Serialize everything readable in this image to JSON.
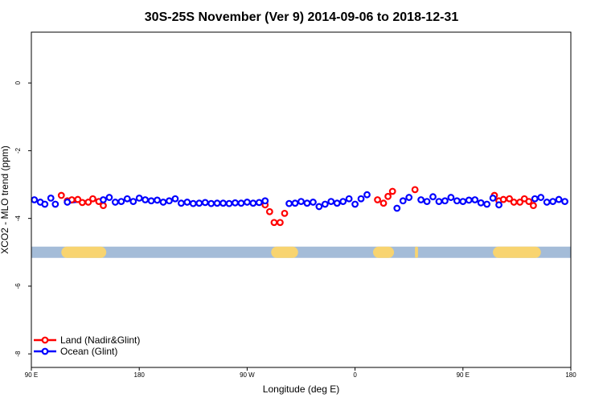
{
  "chart_data": {
    "type": "scatter",
    "title": "30S-25S November (Ver 9)   2014-09-06 to 2018-12-31",
    "xlabel": "Longitude (deg E)",
    "ylabel": "XCO2 - MLO trend (ppm)",
    "xlim": [
      90,
      450
    ],
    "ylim": [
      -8.4,
      1.5
    ],
    "x_ticks": [
      {
        "value": 90,
        "label": "90 E"
      },
      {
        "value": 162,
        "label": "180"
      },
      {
        "value": 234,
        "label": "90 W"
      },
      {
        "value": 306,
        "label": "0"
      },
      {
        "value": 378,
        "label": "90 E"
      },
      {
        "value": 450,
        "label": "180"
      }
    ],
    "y_ticks": [
      {
        "value": 0,
        "label": "0"
      },
      {
        "value": -2,
        "label": "-2"
      },
      {
        "value": -4,
        "label": "-4"
      },
      {
        "value": -6,
        "label": "-6"
      },
      {
        "value": -8,
        "label": "-8"
      }
    ],
    "land_band": {
      "y": -5.0,
      "color": "#a4bcd8",
      "land_color": "#f8d470",
      "land_segments": [
        [
          110,
          140
        ],
        [
          250,
          268
        ],
        [
          318,
          332
        ],
        [
          346,
          348
        ],
        [
          398,
          430
        ]
      ]
    },
    "legend": {
      "position": "bottom-left",
      "entries": [
        {
          "label": "Land (Nadir&Glint)",
          "color": "#ff0000"
        },
        {
          "label": "Ocean (Glint)",
          "color": "#0000ff"
        }
      ]
    },
    "series": [
      {
        "name": "Land (Nadir&Glint)",
        "color": "#ff0000",
        "points": [
          [
            110,
            -3.32
          ],
          [
            114,
            -3.48
          ],
          [
            117,
            -3.45
          ],
          [
            121,
            -3.44
          ],
          [
            124,
            -3.53
          ],
          [
            128,
            -3.52
          ],
          [
            131,
            -3.42
          ],
          [
            135,
            -3.5
          ],
          [
            138,
            -3.62
          ],
          [
            246,
            -3.6
          ],
          [
            249,
            -3.8
          ],
          [
            252,
            -4.12
          ],
          [
            256,
            -4.12
          ],
          [
            259,
            -3.85
          ],
          [
            321,
            -3.45
          ],
          [
            325,
            -3.55
          ],
          [
            328,
            -3.35
          ],
          [
            331,
            -3.2
          ],
          [
            346,
            -3.15
          ],
          [
            399,
            -3.32
          ],
          [
            402,
            -3.48
          ],
          [
            405,
            -3.44
          ],
          [
            409,
            -3.42
          ],
          [
            412,
            -3.52
          ],
          [
            416,
            -3.52
          ],
          [
            419,
            -3.42
          ],
          [
            422,
            -3.5
          ],
          [
            425,
            -3.62
          ]
        ]
      },
      {
        "name": "Ocean (Glint)",
        "color": "#0000ff",
        "points": [
          [
            92,
            -3.45
          ],
          [
            96,
            -3.52
          ],
          [
            99,
            -3.58
          ],
          [
            103,
            -3.4
          ],
          [
            106,
            -3.58
          ],
          [
            114,
            -3.52
          ],
          [
            138,
            -3.45
          ],
          [
            142,
            -3.38
          ],
          [
            146,
            -3.52
          ],
          [
            150,
            -3.5
          ],
          [
            154,
            -3.42
          ],
          [
            158,
            -3.5
          ],
          [
            162,
            -3.4
          ],
          [
            166,
            -3.45
          ],
          [
            170,
            -3.48
          ],
          [
            174,
            -3.46
          ],
          [
            178,
            -3.52
          ],
          [
            182,
            -3.48
          ],
          [
            186,
            -3.42
          ],
          [
            190,
            -3.55
          ],
          [
            194,
            -3.52
          ],
          [
            198,
            -3.56
          ],
          [
            202,
            -3.55
          ],
          [
            206,
            -3.53
          ],
          [
            210,
            -3.56
          ],
          [
            214,
            -3.55
          ],
          [
            218,
            -3.55
          ],
          [
            222,
            -3.56
          ],
          [
            226,
            -3.54
          ],
          [
            230,
            -3.55
          ],
          [
            234,
            -3.52
          ],
          [
            238,
            -3.55
          ],
          [
            242,
            -3.53
          ],
          [
            246,
            -3.48
          ],
          [
            262,
            -3.56
          ],
          [
            266,
            -3.55
          ],
          [
            270,
            -3.5
          ],
          [
            274,
            -3.55
          ],
          [
            278,
            -3.52
          ],
          [
            282,
            -3.65
          ],
          [
            286,
            -3.58
          ],
          [
            290,
            -3.5
          ],
          [
            294,
            -3.55
          ],
          [
            298,
            -3.5
          ],
          [
            302,
            -3.42
          ],
          [
            306,
            -3.58
          ],
          [
            310,
            -3.42
          ],
          [
            314,
            -3.3
          ],
          [
            334,
            -3.7
          ],
          [
            338,
            -3.48
          ],
          [
            342,
            -3.38
          ],
          [
            350,
            -3.45
          ],
          [
            354,
            -3.5
          ],
          [
            358,
            -3.36
          ],
          [
            362,
            -3.5
          ],
          [
            366,
            -3.48
          ],
          [
            370,
            -3.38
          ],
          [
            374,
            -3.48
          ],
          [
            378,
            -3.5
          ],
          [
            382,
            -3.46
          ],
          [
            386,
            -3.45
          ],
          [
            390,
            -3.54
          ],
          [
            394,
            -3.58
          ],
          [
            398,
            -3.4
          ],
          [
            402,
            -3.6
          ],
          [
            426,
            -3.42
          ],
          [
            430,
            -3.38
          ],
          [
            434,
            -3.52
          ],
          [
            438,
            -3.5
          ],
          [
            442,
            -3.44
          ],
          [
            446,
            -3.5
          ]
        ]
      }
    ],
    "trend_line": {
      "color": "#0000ff",
      "x": [
        114,
        138
      ],
      "y": [
        -3.55,
        -3.42
      ]
    }
  }
}
